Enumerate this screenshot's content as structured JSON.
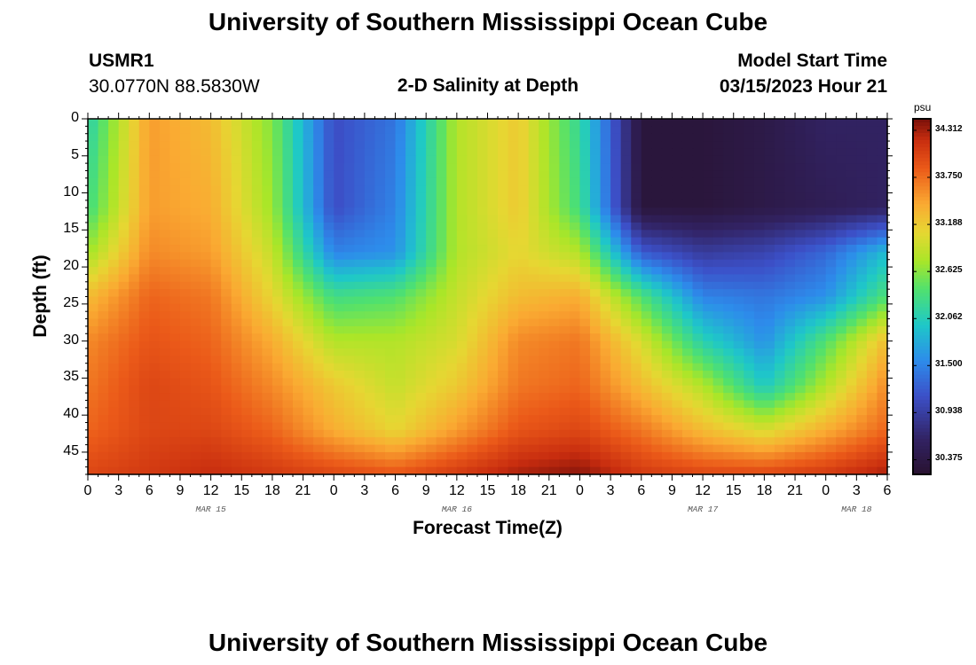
{
  "header": {
    "title": "University of Southern Mississippi Ocean Cube",
    "station_id": "USMR1",
    "station_coords": "30.0770N  88.5830W",
    "subtitle": "2-D Salinity at Depth",
    "model_start_label": "Model Start Time",
    "model_start_value": "03/15/2023 Hour 21"
  },
  "footer": {
    "title": "University of Southern Mississippi Ocean Cube"
  },
  "colorbar": {
    "unit": "psu",
    "ticks": [
      "34.312",
      "33.750",
      "33.188",
      "32.625",
      "32.062",
      "31.500",
      "30.938",
      "30.375"
    ],
    "min": 30.2,
    "max": 34.45
  },
  "chart_data": {
    "type": "heatmap",
    "title": "2-D Salinity at Depth",
    "xlabel": "Forecast Time(Z)",
    "ylabel": "Depth (ft)",
    "value_unit": "psu",
    "x_unit": "hours since 2023-03-15 00Z",
    "xlim": [
      0,
      78
    ],
    "ylim": [
      48,
      0
    ],
    "x_tick_labels": [
      "0",
      "3",
      "6",
      "9",
      "12",
      "15",
      "18",
      "21",
      "0",
      "3",
      "6",
      "9",
      "12",
      "15",
      "18",
      "21",
      "0",
      "3",
      "6",
      "9",
      "12",
      "15",
      "18",
      "21",
      "0",
      "3",
      "6"
    ],
    "date_labels": [
      {
        "label": "MAR 15",
        "at_hour": 12
      },
      {
        "label": "MAR 16",
        "at_hour": 36
      },
      {
        "label": "MAR 17",
        "at_hour": 60
      },
      {
        "label": "MAR 18",
        "at_hour": 75
      }
    ],
    "y_tick_labels": [
      "0",
      "5",
      "10",
      "15",
      "20",
      "25",
      "30",
      "35",
      "40",
      "45"
    ],
    "y_ticks": [
      0,
      5,
      10,
      15,
      20,
      25,
      30,
      35,
      40,
      45
    ],
    "x": [
      0,
      6,
      12,
      18,
      24,
      30,
      36,
      42,
      48,
      54,
      60,
      66,
      72,
      78
    ],
    "depths": [
      0,
      12,
      18,
      24,
      30,
      36,
      42,
      48
    ],
    "z": [
      [
        32.1,
        33.5,
        33.3,
        32.6,
        31.1,
        31.4,
        32.8,
        33.2,
        32.2,
        30.3,
        30.3,
        30.4,
        30.6,
        30.6
      ],
      [
        32.3,
        33.5,
        33.4,
        32.7,
        31.1,
        31.5,
        32.8,
        33.2,
        32.3,
        30.3,
        30.3,
        30.4,
        30.5,
        30.6
      ],
      [
        32.7,
        33.6,
        33.5,
        32.9,
        31.5,
        31.6,
        32.8,
        33.1,
        32.8,
        31.2,
        30.9,
        31.0,
        31.3,
        31.9
      ],
      [
        33.3,
        33.8,
        33.7,
        33.1,
        32.3,
        32.4,
        32.9,
        33.3,
        33.4,
        32.4,
        31.5,
        31.4,
        31.6,
        32.4
      ],
      [
        33.6,
        33.9,
        33.8,
        33.4,
        32.8,
        32.8,
        33.0,
        33.6,
        33.7,
        33.0,
        32.1,
        31.6,
        32.4,
        33.3
      ],
      [
        33.7,
        34.0,
        33.9,
        33.6,
        33.2,
        32.9,
        33.2,
        33.7,
        33.8,
        33.3,
        32.8,
        32.0,
        32.8,
        33.6
      ],
      [
        33.8,
        34.0,
        34.0,
        33.8,
        33.4,
        33.1,
        33.5,
        33.9,
        34.0,
        33.7,
        33.3,
        33.0,
        33.4,
        33.8
      ],
      [
        34.0,
        34.1,
        34.2,
        34.1,
        34.0,
        33.9,
        34.1,
        34.3,
        34.4,
        34.1,
        34.0,
        34.0,
        34.1,
        34.3
      ]
    ]
  }
}
